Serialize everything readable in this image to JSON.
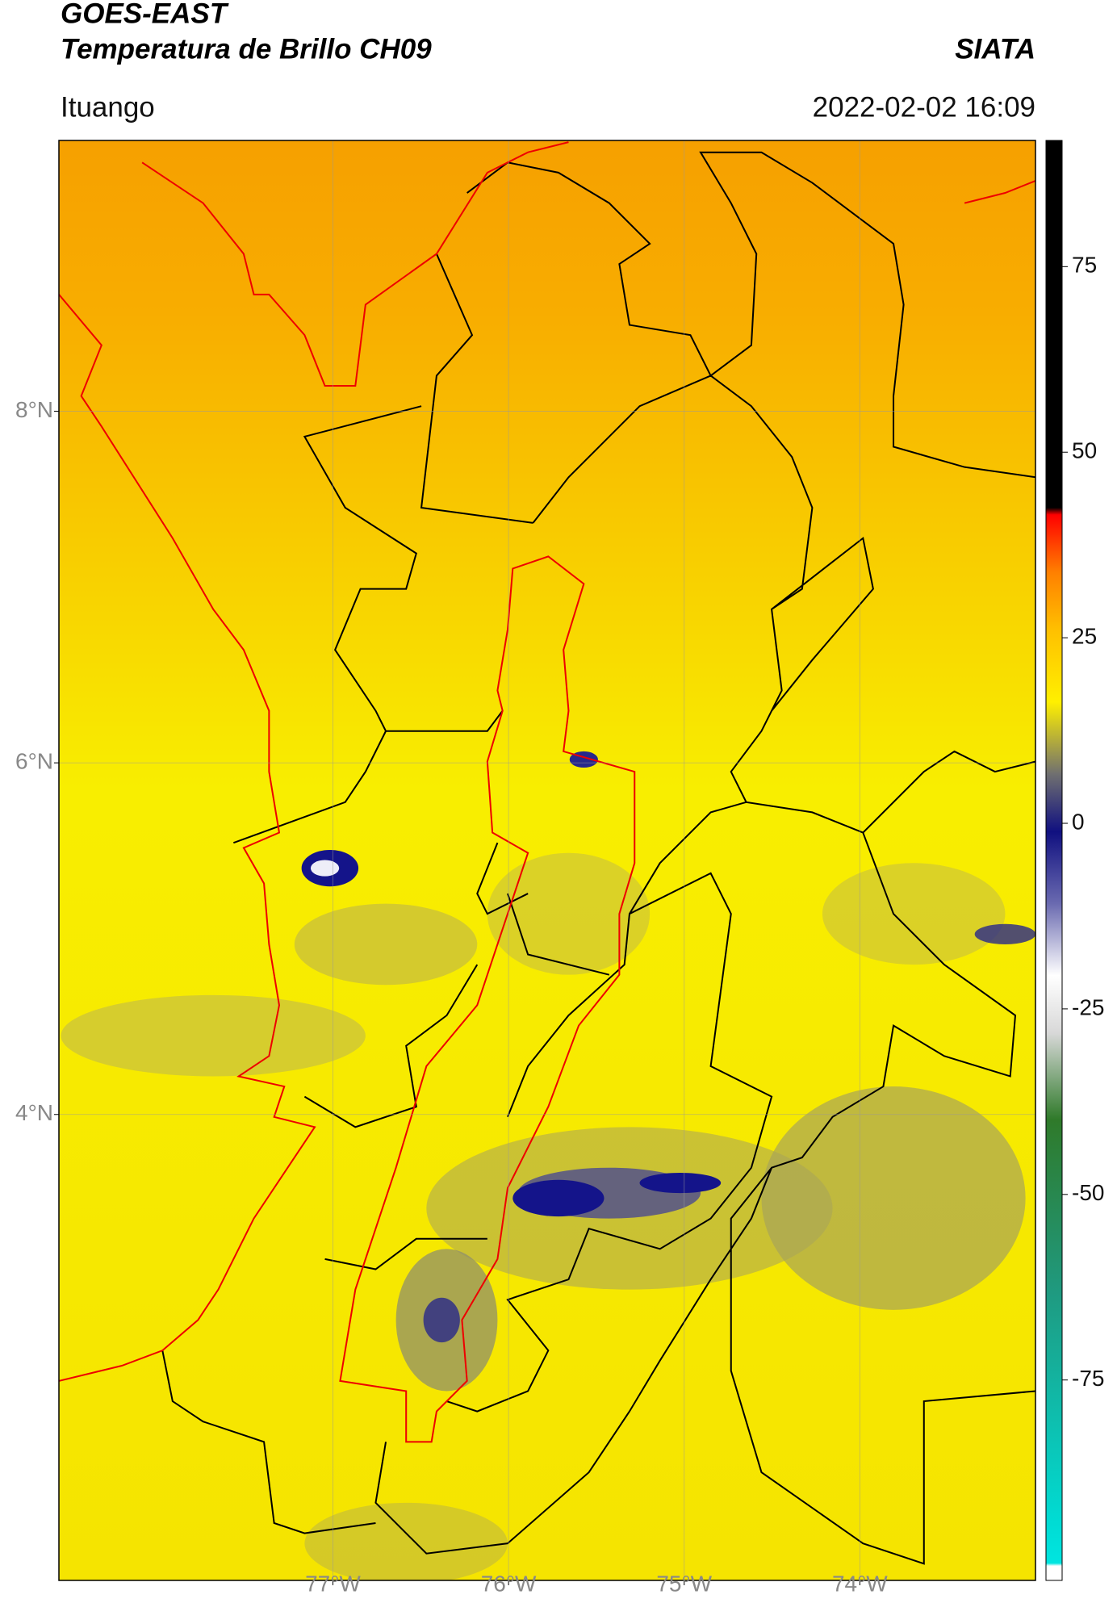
{
  "chart_data": {
    "type": "map",
    "title": "GOES-EAST",
    "subtitle": "Temperatura de Brillo CH09",
    "source": "SIATA",
    "location": "Ituango",
    "datetime": "2022-02-02 16:09",
    "xlim": [
      -78.56,
      -73.0
    ],
    "ylim": [
      1.35,
      9.54
    ],
    "xticks": [
      {
        "value": -77,
        "label": "77°W"
      },
      {
        "value": -76,
        "label": "76°W"
      },
      {
        "value": -75,
        "label": "75°W"
      },
      {
        "value": -74,
        "label": "74°W"
      }
    ],
    "yticks": [
      {
        "value": 8,
        "label": "8°N"
      },
      {
        "value": 6,
        "label": "6°N"
      },
      {
        "value": 4,
        "label": "4°N"
      }
    ],
    "grid": true,
    "colorbar": {
      "lim": [
        -102,
        92
      ],
      "ticks": [
        75,
        50,
        25,
        0,
        -25,
        -50,
        -75
      ]
    }
  }
}
